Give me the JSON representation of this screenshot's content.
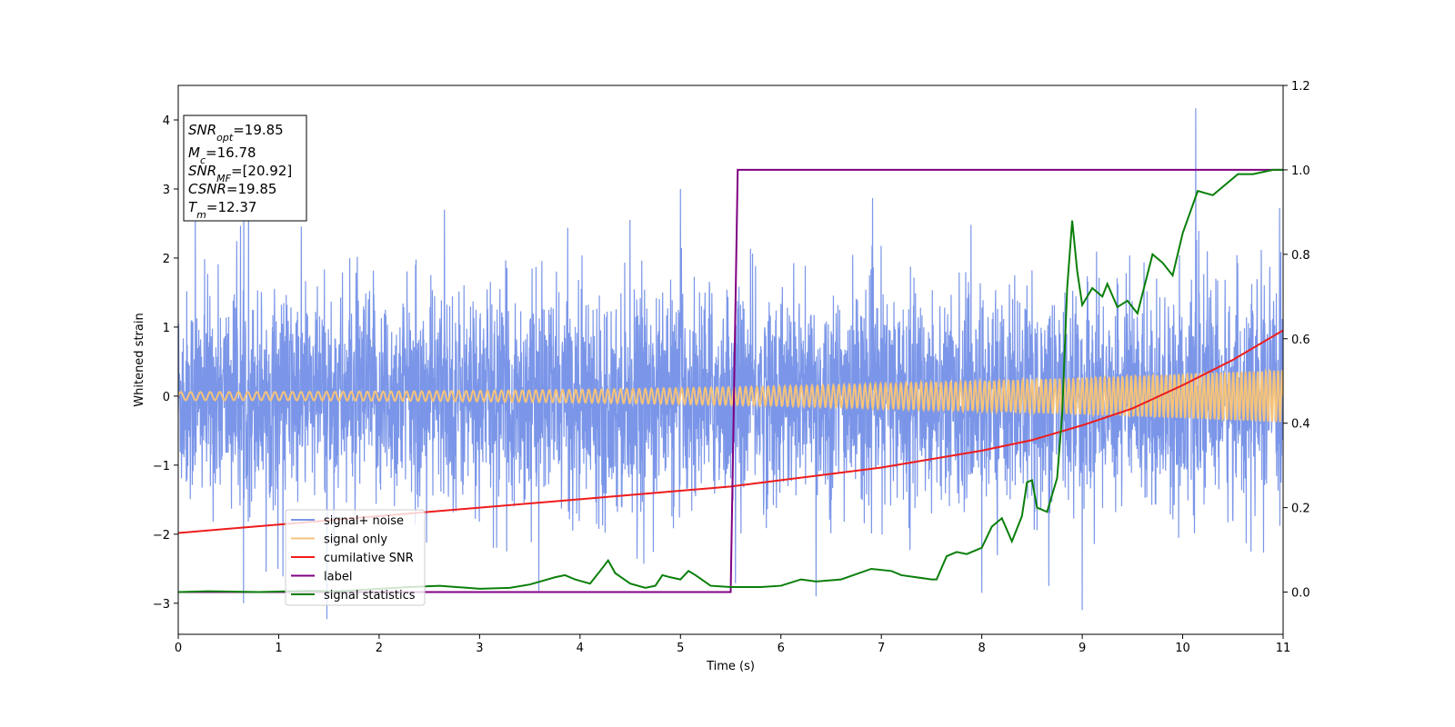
{
  "chart_data": {
    "type": "line",
    "xlabel": "Time (s)",
    "ylabel_left": "Whitened strain",
    "ylabel_right": "",
    "xlim": [
      0,
      11
    ],
    "ylim_left": [
      -3.45,
      4.5
    ],
    "ylim_right": [
      -0.1,
      1.2
    ],
    "x_ticks": [
      0,
      1,
      2,
      3,
      4,
      5,
      6,
      7,
      8,
      9,
      10,
      11
    ],
    "y_ticks_left": [
      4,
      3,
      2,
      1,
      0,
      -1,
      -2,
      -3
    ],
    "y_ticks_left_labels": [
      "4",
      "3",
      "2",
      "1",
      "0",
      "−1",
      "−2",
      "−3"
    ],
    "y_ticks_right": [
      1.2,
      1.0,
      0.8,
      0.6,
      0.4,
      0.2,
      0.0
    ],
    "y_ticks_right_labels": [
      "1.2",
      "1.0",
      "0.8",
      "0.6",
      "0.4",
      "0.2",
      "0.0"
    ],
    "grid": false,
    "legend_position": "lower-left",
    "info_box": {
      "snr_opt_main": "SNR",
      "snr_opt_sub": "opt",
      "snr_opt_value": "=19.85",
      "mc_main": "M",
      "mc_sub": "c",
      "mc_value": "=16.78",
      "snr_mf_main": "SNR",
      "snr_mf_sub": "MF",
      "snr_mf_value": "=[20.92]",
      "csnr_main": "CSNR",
      "csnr_value": "=19.85",
      "tm_main": "T",
      "tm_sub": "m",
      "tm_value": "=12.37"
    },
    "series": [
      {
        "name": "signal+ noise",
        "axis": "left",
        "color": "#7b96e8",
        "kind": "noise",
        "approx_std": 0.75,
        "peaks": [
          [
            0.17,
            2.7
          ],
          [
            0.65,
            -3.0
          ],
          [
            0.7,
            2.65
          ],
          [
            2.65,
            2.7
          ],
          [
            5.0,
            3.0
          ],
          [
            6.35,
            -2.9
          ],
          [
            8.0,
            -2.85
          ],
          [
            9.0,
            -3.1
          ],
          [
            10.13,
            4.17
          ]
        ]
      },
      {
        "name": "signal only",
        "axis": "left",
        "color": "#f5c37a",
        "kind": "chirp",
        "amplitude_start": 0.06,
        "amplitude_end": 0.38,
        "cycles_per_second_start": 10,
        "cycles_per_second_end": 25
      },
      {
        "name": "cumilative SNR",
        "axis": "right",
        "color": "#ee1c1c",
        "x": [
          0,
          1,
          2,
          3,
          4,
          5,
          5.5,
          6,
          7,
          8,
          8.5,
          9,
          9.5,
          10,
          10.5,
          11
        ],
        "y": [
          0.14,
          0.16,
          0.18,
          0.2,
          0.22,
          0.24,
          0.25,
          0.265,
          0.295,
          0.335,
          0.36,
          0.395,
          0.435,
          0.49,
          0.55,
          0.62
        ]
      },
      {
        "name": "label",
        "axis": "right",
        "color": "#800080",
        "x": [
          0,
          5.5,
          5.57,
          11
        ],
        "y": [
          0.0,
          0.0,
          1.0,
          1.0
        ]
      },
      {
        "name": "signal statistics",
        "axis": "right",
        "color": "#0a7f0a",
        "x": [
          0,
          0.3,
          0.8,
          1.3,
          1.6,
          2.0,
          2.3,
          2.6,
          3.0,
          3.3,
          3.5,
          3.75,
          3.85,
          3.95,
          4.1,
          4.2,
          4.28,
          4.35,
          4.5,
          4.65,
          4.75,
          4.82,
          4.9,
          5.0,
          5.08,
          5.15,
          5.3,
          5.5,
          5.8,
          6.0,
          6.2,
          6.35,
          6.6,
          6.9,
          7.1,
          7.2,
          7.5,
          7.55,
          7.65,
          7.75,
          7.85,
          7.95,
          8.0,
          8.1,
          8.2,
          8.3,
          8.4,
          8.45,
          8.5,
          8.55,
          8.65,
          8.75,
          8.8,
          8.85,
          8.9,
          8.95,
          9.0,
          9.1,
          9.2,
          9.25,
          9.35,
          9.45,
          9.55,
          9.7,
          9.8,
          9.9,
          10.0,
          10.15,
          10.3,
          10.4,
          10.55,
          10.7,
          10.9,
          11
        ],
        "y": [
          0.0,
          0.002,
          0.0,
          0.003,
          0.002,
          0.008,
          0.012,
          0.015,
          0.008,
          0.01,
          0.018,
          0.035,
          0.04,
          0.03,
          0.02,
          0.05,
          0.075,
          0.045,
          0.02,
          0.01,
          0.015,
          0.04,
          0.035,
          0.03,
          0.05,
          0.04,
          0.015,
          0.012,
          0.012,
          0.015,
          0.03,
          0.025,
          0.03,
          0.055,
          0.05,
          0.04,
          0.03,
          0.03,
          0.085,
          0.095,
          0.09,
          0.1,
          0.105,
          0.155,
          0.175,
          0.12,
          0.18,
          0.26,
          0.265,
          0.2,
          0.19,
          0.27,
          0.42,
          0.72,
          0.88,
          0.76,
          0.68,
          0.72,
          0.7,
          0.73,
          0.675,
          0.69,
          0.66,
          0.8,
          0.78,
          0.75,
          0.85,
          0.95,
          0.94,
          0.96,
          0.99,
          0.99,
          1.0,
          1.0
        ]
      }
    ]
  }
}
